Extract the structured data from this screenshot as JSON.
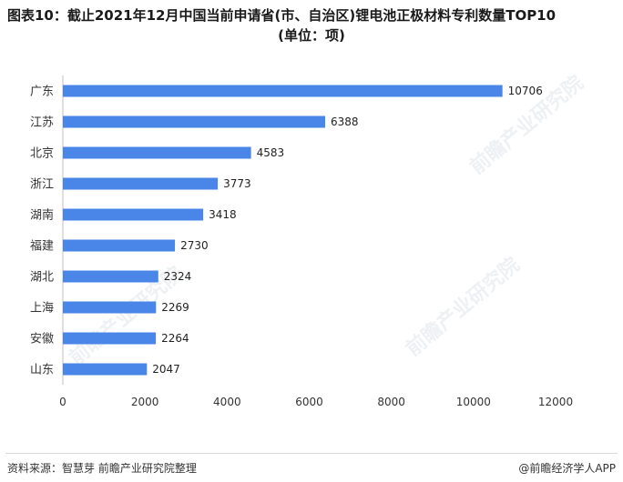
{
  "title": {
    "line1": "图表10：截止2021年12月中国当前申请省(市、自治区)锂电池正极材料专利数量TOP10",
    "line2": "(单位：项)"
  },
  "watermark": "前瞻产业研究院",
  "footer": {
    "source": "资料来源：智慧芽 前瞻产业研究院整理",
    "brand": "@前瞻经济学人APP"
  },
  "colors": {
    "bar": "#4a86e8",
    "axis": "#bfbfbf"
  },
  "chart_data": {
    "type": "bar",
    "orientation": "horizontal",
    "categories": [
      "广东",
      "江苏",
      "北京",
      "浙江",
      "湖南",
      "福建",
      "湖北",
      "上海",
      "安徽",
      "山东"
    ],
    "values": [
      10706,
      6388,
      4583,
      3773,
      3418,
      2730,
      2324,
      2269,
      2264,
      2047
    ],
    "xlim": [
      0,
      12000
    ],
    "xticks": [
      0,
      2000,
      4000,
      6000,
      8000,
      10000,
      12000
    ],
    "grid": false,
    "data_labels": true
  }
}
